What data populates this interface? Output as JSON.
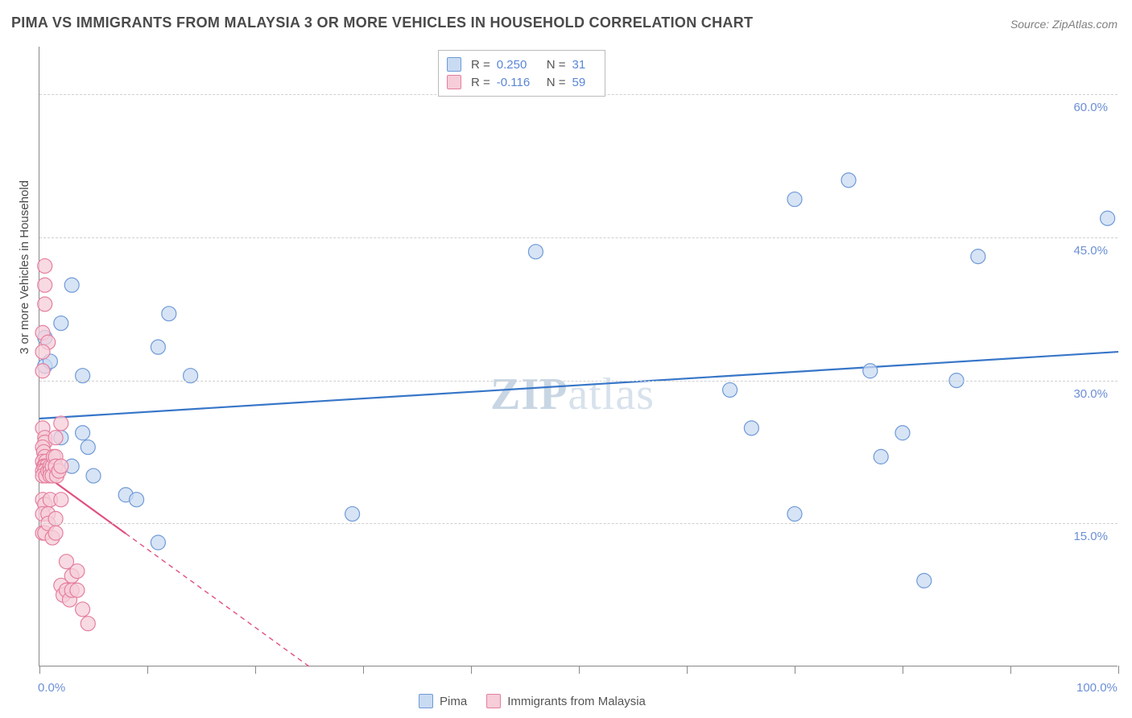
{
  "title": "PIMA VS IMMIGRANTS FROM MALAYSIA 3 OR MORE VEHICLES IN HOUSEHOLD CORRELATION CHART",
  "source": "Source: ZipAtlas.com",
  "watermark_zip": "ZIP",
  "watermark_atlas": "atlas",
  "y_axis_label": "3 or more Vehicles in Household",
  "chart": {
    "type": "scatter",
    "background_color": "#ffffff",
    "grid_color": "#d0d0d0",
    "axis_color": "#888888",
    "tick_label_color": "#6b8fd6",
    "xlim": [
      0,
      100
    ],
    "ylim": [
      0,
      65
    ],
    "x_tick_positions": [
      0,
      10,
      20,
      30,
      40,
      50,
      60,
      70,
      80,
      90,
      100
    ],
    "x_tick_labels_shown": {
      "0": "0.0%",
      "100": "100.0%"
    },
    "y_gridlines": [
      15,
      30,
      45,
      60
    ],
    "y_tick_labels": {
      "15": "15.0%",
      "30": "30.0%",
      "45": "45.0%",
      "60": "60.0%"
    },
    "marker_radius": 9,
    "marker_stroke_width": 1.2,
    "trend_line_width": 2.2,
    "series": [
      {
        "key": "pima",
        "label": "Pima",
        "fill": "#c9dbf2",
        "stroke": "#6f9ad8",
        "trend_color": "#3776c8",
        "trend_dash_extrapolate": "none",
        "R": "0.250",
        "N": "31",
        "trend": {
          "x1": 0,
          "y1": 26,
          "x2": 100,
          "y2": 33
        },
        "points": [
          [
            0.5,
            31.5
          ],
          [
            0.5,
            34.5
          ],
          [
            1,
            32
          ],
          [
            2,
            36
          ],
          [
            3,
            40
          ],
          [
            4,
            30.5
          ],
          [
            2,
            24
          ],
          [
            3,
            21
          ],
          [
            4,
            24.5
          ],
          [
            4.5,
            23
          ],
          [
            5,
            20
          ],
          [
            8,
            18
          ],
          [
            9,
            17.5
          ],
          [
            11,
            13
          ],
          [
            11,
            33.5
          ],
          [
            12,
            37
          ],
          [
            14,
            30.5
          ],
          [
            29,
            16
          ],
          [
            46,
            43.5
          ],
          [
            64,
            29
          ],
          [
            66,
            25
          ],
          [
            70,
            49
          ],
          [
            70,
            16
          ],
          [
            75,
            51
          ],
          [
            77,
            31
          ],
          [
            78,
            22
          ],
          [
            80,
            24.5
          ],
          [
            82,
            9
          ],
          [
            85,
            30
          ],
          [
            87,
            43
          ],
          [
            99,
            47
          ]
        ]
      },
      {
        "key": "malaysia",
        "label": "Immigrants from Malaysia",
        "fill": "#f6cdd9",
        "stroke": "#e57f9e",
        "trend_color": "#e0517d",
        "trend_dash_extrapolate": "6,5",
        "R": "-0.116",
        "N": "59",
        "trend": {
          "x1": 0,
          "y1": 20.5,
          "x2": 25,
          "y2": 0,
          "solid_x_end": 8
        },
        "points": [
          [
            0.5,
            42
          ],
          [
            0.5,
            40
          ],
          [
            0.5,
            38
          ],
          [
            0.3,
            35
          ],
          [
            0.8,
            34
          ],
          [
            0.3,
            33
          ],
          [
            0.3,
            31
          ],
          [
            0.3,
            25
          ],
          [
            0.5,
            24
          ],
          [
            0.5,
            23.5
          ],
          [
            0.3,
            23
          ],
          [
            0.4,
            22.5
          ],
          [
            0.5,
            22
          ],
          [
            0.3,
            21.5
          ],
          [
            0.6,
            21.5
          ],
          [
            0.4,
            21
          ],
          [
            0.5,
            21
          ],
          [
            0.7,
            21
          ],
          [
            0.3,
            20.5
          ],
          [
            0.5,
            20.5
          ],
          [
            0.3,
            20
          ],
          [
            0.6,
            20
          ],
          [
            0.8,
            20.5
          ],
          [
            1,
            21
          ],
          [
            1,
            20.5
          ],
          [
            1,
            20
          ],
          [
            1.2,
            21
          ],
          [
            1.2,
            20
          ],
          [
            1.3,
            22
          ],
          [
            1.5,
            22
          ],
          [
            1.5,
            21
          ],
          [
            1.5,
            24
          ],
          [
            1.6,
            20
          ],
          [
            1.8,
            20.5
          ],
          [
            2,
            25.5
          ],
          [
            2,
            21
          ],
          [
            0.3,
            17.5
          ],
          [
            0.5,
            17
          ],
          [
            0.3,
            16
          ],
          [
            0.8,
            16
          ],
          [
            1,
            17.5
          ],
          [
            0.3,
            14
          ],
          [
            0.5,
            14
          ],
          [
            0.8,
            15
          ],
          [
            1.2,
            13.5
          ],
          [
            1.5,
            15.5
          ],
          [
            1.5,
            14
          ],
          [
            2,
            17.5
          ],
          [
            2,
            8.5
          ],
          [
            2.2,
            7.5
          ],
          [
            2.5,
            11
          ],
          [
            2.5,
            8
          ],
          [
            2.8,
            7
          ],
          [
            3,
            9.5
          ],
          [
            3,
            8
          ],
          [
            3.5,
            10
          ],
          [
            3.5,
            8
          ],
          [
            4,
            6
          ],
          [
            4.5,
            4.5
          ]
        ]
      }
    ]
  },
  "stats_legend": {
    "r_label": "R =",
    "n_label": "N ="
  }
}
